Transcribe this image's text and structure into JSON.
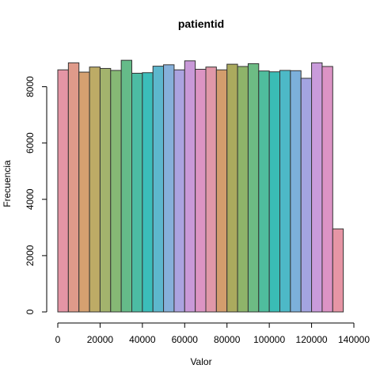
{
  "chart_data": {
    "type": "bar",
    "title": "patientid",
    "xlabel": "Valor",
    "ylabel": "Frecuencia",
    "xlim": [
      0,
      140000
    ],
    "ylim": [
      0,
      9000
    ],
    "bin_width": 5000,
    "x_ticks": [
      0,
      20000,
      40000,
      60000,
      80000,
      100000,
      120000,
      140000
    ],
    "y_ticks": [
      0,
      2000,
      4000,
      6000,
      8000
    ],
    "bins": [
      {
        "start": 0,
        "end": 5000,
        "value": 8600,
        "color": "#E495A5"
      },
      {
        "start": 5000,
        "end": 10000,
        "value": 8850,
        "color": "#DF9A8A"
      },
      {
        "start": 10000,
        "end": 15000,
        "value": 8520,
        "color": "#D5A070"
      },
      {
        "start": 15000,
        "end": 20000,
        "value": 8700,
        "color": "#BDAB66"
      },
      {
        "start": 20000,
        "end": 25000,
        "value": 8650,
        "color": "#A3B36D"
      },
      {
        "start": 25000,
        "end": 30000,
        "value": 8580,
        "color": "#86B875"
      },
      {
        "start": 30000,
        "end": 35000,
        "value": 8940,
        "color": "#65BB89"
      },
      {
        "start": 35000,
        "end": 40000,
        "value": 8480,
        "color": "#4CBCA3"
      },
      {
        "start": 40000,
        "end": 45000,
        "value": 8500,
        "color": "#3BBDBA"
      },
      {
        "start": 45000,
        "end": 50000,
        "value": 8730,
        "color": "#5DB7CD"
      },
      {
        "start": 50000,
        "end": 55000,
        "value": 8780,
        "color": "#86B0DA"
      },
      {
        "start": 55000,
        "end": 60000,
        "value": 8600,
        "color": "#ABA3E0"
      },
      {
        "start": 60000,
        "end": 65000,
        "value": 8920,
        "color": "#C999D8"
      },
      {
        "start": 65000,
        "end": 70000,
        "value": 8620,
        "color": "#DC94C3"
      },
      {
        "start": 70000,
        "end": 75000,
        "value": 8700,
        "color": "#E098A8"
      },
      {
        "start": 75000,
        "end": 80000,
        "value": 8600,
        "color": "#D39D6D"
      },
      {
        "start": 80000,
        "end": 85000,
        "value": 8800,
        "color": "#ABAA5E"
      },
      {
        "start": 85000,
        "end": 90000,
        "value": 8720,
        "color": "#8EB46A"
      },
      {
        "start": 90000,
        "end": 95000,
        "value": 8820,
        "color": "#6DBB84"
      },
      {
        "start": 95000,
        "end": 100000,
        "value": 8560,
        "color": "#4FBD9D"
      },
      {
        "start": 100000,
        "end": 105000,
        "value": 8530,
        "color": "#3ABCB5"
      },
      {
        "start": 105000,
        "end": 110000,
        "value": 8580,
        "color": "#4DB9C7"
      },
      {
        "start": 110000,
        "end": 115000,
        "value": 8570,
        "color": "#7CB0DB"
      },
      {
        "start": 115000,
        "end": 120000,
        "value": 8300,
        "color": "#A3A4E1"
      },
      {
        "start": 120000,
        "end": 125000,
        "value": 8850,
        "color": "#C99BDB"
      },
      {
        "start": 125000,
        "end": 130000,
        "value": 8720,
        "color": "#DC93C5"
      },
      {
        "start": 130000,
        "end": 135000,
        "value": 2950,
        "color": "#E695A5"
      }
    ]
  }
}
